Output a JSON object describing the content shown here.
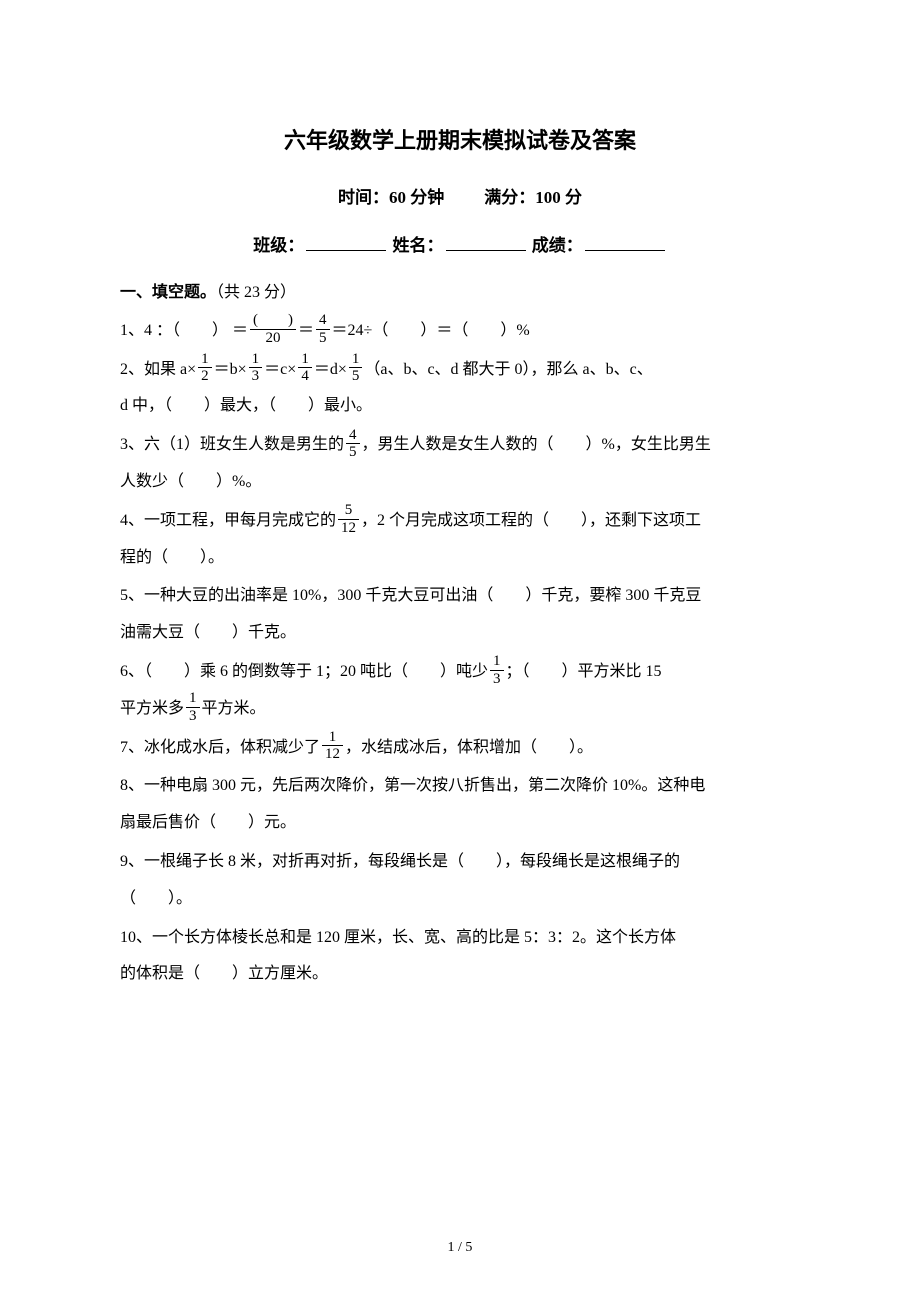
{
  "title": "六年级数学上册期末模拟试卷及答案",
  "subtitle": {
    "time_label": "时间：",
    "time_value": "60 分钟",
    "score_label": "满分：",
    "score_value": "100 分"
  },
  "info": {
    "class_label": "班级：",
    "name_label": "姓名：",
    "grade_label": "成绩："
  },
  "section1": {
    "heading": "一、填空题。",
    "points": "（共 23 分）"
  },
  "q1": {
    "p1": "1、4 ：（　　） ＝",
    "frac1_num": "(　　)",
    "frac1_den": "20",
    "eq1": "＝",
    "frac2_num": "4",
    "frac2_den": "5",
    "p2": "＝24÷（　　）＝（　　）%"
  },
  "q2": {
    "p1": "2、如果 a×",
    "f1n": "1",
    "f1d": "2",
    "p2": "＝b×",
    "f2n": "1",
    "f2d": "3",
    "p3": "＝c×",
    "f3n": "1",
    "f3d": "4",
    "p4": "＝d×",
    "f4n": "1",
    "f4d": "5",
    "p5": "（a、b、c、d 都大于 0），那么 a、b、c、",
    "p6": "d 中，（　　）最大，（　　）最小。"
  },
  "q3": {
    "p1": "3、六（1）班女生人数是男生的",
    "fn": "4",
    "fd": "5",
    "p2": "，男生人数是女生人数的（　　）%，女生比男生",
    "p3": "人数少（　　）%。"
  },
  "q4": {
    "p1": "4、一项工程，甲每月完成它的",
    "fn": "5",
    "fd": "12",
    "p2": "，2 个月完成这项工程的（　　），还剩下这项工",
    "p3": "程的（　　）。"
  },
  "q5": {
    "p1": "5、一种大豆的出油率是 10%，300 千克大豆可出油（　　）千克，要榨 300 千克豆",
    "p2": "油需大豆（　　）千克。"
  },
  "q6": {
    "p1": "6、（　　）乘 6 的倒数等于 1；20 吨比（　　）吨少",
    "f1n": "1",
    "f1d": "3",
    "p2": "；（　　）平方米比 15",
    "p3": "平方米多",
    "f2n": "1",
    "f2d": "3",
    "p4": "平方米。"
  },
  "q7": {
    "p1": "7、冰化成水后，体积减少了",
    "fn": "1",
    "fd": "12",
    "p2": "，水结成冰后，体积增加（　　）。"
  },
  "q8": {
    "p1": "8、一种电扇 300 元，先后两次降价，第一次按八折售出，第二次降价 10%。这种电",
    "p2": "扇最后售价（　　）元。"
  },
  "q9": {
    "p1": "9、一根绳子长 8 米，对折再对折，每段绳长是（　　），每段绳长是这根绳子的",
    "p2": "（　　）。"
  },
  "q10": {
    "p1": "10、一个长方体棱长总和是 120 厘米，长、宽、高的比是 5：3：2。这个长方体",
    "p2": "的体积是（　　）立方厘米。"
  },
  "footer": "1 / 5"
}
